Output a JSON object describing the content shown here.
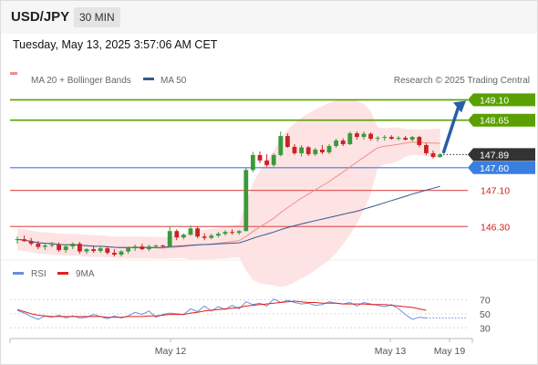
{
  "header": {
    "symbol": "USD/JPY",
    "timeframe": "30 MIN"
  },
  "datetime": "Tuesday, May 13, 2025 3:57:06 AM CET",
  "legend": {
    "ma20": {
      "label": "MA 20 + Bollinger Bands",
      "color": "#f08c8c"
    },
    "ma50": {
      "label": "MA 50",
      "color": "#35598f"
    },
    "credit": "Research © 2025 Trading Central"
  },
  "rsi_legend": {
    "rsi": {
      "label": "RSI",
      "color": "#6a8fd8"
    },
    "ma": {
      "label": "9MA",
      "color": "#e02020"
    }
  },
  "colors": {
    "up": "#3a9a3a",
    "down": "#cc2222",
    "target": "#5aa000",
    "pivot": "#3a7fe0",
    "support": "#e06060",
    "arrow": "#2a5da8"
  },
  "chart_data": [
    {
      "type": "candlestick",
      "title": "USD/JPY 30 MIN",
      "x_ticks": [
        "May 12",
        "May 13",
        "May 19"
      ],
      "ylim": [
        145.6,
        149.35
      ],
      "candles": [
        {
          "o": 146.0,
          "h": 146.08,
          "l": 145.92,
          "c": 146.02
        },
        {
          "o": 146.02,
          "h": 146.1,
          "l": 145.96,
          "c": 145.98
        },
        {
          "o": 145.98,
          "h": 146.05,
          "l": 145.88,
          "c": 145.92
        },
        {
          "o": 145.92,
          "h": 145.98,
          "l": 145.8,
          "c": 145.85
        },
        {
          "o": 145.85,
          "h": 145.92,
          "l": 145.78,
          "c": 145.88
        },
        {
          "o": 145.88,
          "h": 145.96,
          "l": 145.84,
          "c": 145.9
        },
        {
          "o": 145.9,
          "h": 145.95,
          "l": 145.74,
          "c": 145.78
        },
        {
          "o": 145.78,
          "h": 145.9,
          "l": 145.72,
          "c": 145.86
        },
        {
          "o": 145.86,
          "h": 145.95,
          "l": 145.8,
          "c": 145.92
        },
        {
          "o": 145.92,
          "h": 145.96,
          "l": 145.7,
          "c": 145.75
        },
        {
          "o": 145.75,
          "h": 145.82,
          "l": 145.7,
          "c": 145.8
        },
        {
          "o": 145.8,
          "h": 145.88,
          "l": 145.72,
          "c": 145.76
        },
        {
          "o": 145.76,
          "h": 145.85,
          "l": 145.72,
          "c": 145.82
        },
        {
          "o": 145.82,
          "h": 145.86,
          "l": 145.68,
          "c": 145.72
        },
        {
          "o": 145.72,
          "h": 145.8,
          "l": 145.64,
          "c": 145.68
        },
        {
          "o": 145.68,
          "h": 145.78,
          "l": 145.64,
          "c": 145.75
        },
        {
          "o": 145.75,
          "h": 145.86,
          "l": 145.7,
          "c": 145.82
        },
        {
          "o": 145.82,
          "h": 145.9,
          "l": 145.76,
          "c": 145.86
        },
        {
          "o": 145.86,
          "h": 145.92,
          "l": 145.78,
          "c": 145.8
        },
        {
          "o": 145.8,
          "h": 145.9,
          "l": 145.76,
          "c": 145.86
        },
        {
          "o": 145.86,
          "h": 145.9,
          "l": 145.82,
          "c": 145.88
        },
        {
          "o": 145.88,
          "h": 145.9,
          "l": 145.84,
          "c": 145.86
        },
        {
          "o": 145.86,
          "h": 146.3,
          "l": 145.86,
          "c": 146.2
        },
        {
          "o": 146.2,
          "h": 146.24,
          "l": 146.0,
          "c": 146.06
        },
        {
          "o": 146.06,
          "h": 146.15,
          "l": 146.02,
          "c": 146.12
        },
        {
          "o": 146.12,
          "h": 146.32,
          "l": 146.1,
          "c": 146.26
        },
        {
          "o": 146.26,
          "h": 146.3,
          "l": 146.04,
          "c": 146.08
        },
        {
          "o": 146.08,
          "h": 146.15,
          "l": 146.0,
          "c": 146.05
        },
        {
          "o": 146.05,
          "h": 146.14,
          "l": 146.02,
          "c": 146.1
        },
        {
          "o": 146.1,
          "h": 146.18,
          "l": 146.06,
          "c": 146.14
        },
        {
          "o": 146.14,
          "h": 146.22,
          "l": 146.1,
          "c": 146.18
        },
        {
          "o": 146.18,
          "h": 146.24,
          "l": 146.12,
          "c": 146.16
        },
        {
          "o": 146.16,
          "h": 146.22,
          "l": 146.12,
          "c": 146.2
        },
        {
          "o": 146.2,
          "h": 147.6,
          "l": 146.2,
          "c": 147.55
        },
        {
          "o": 147.55,
          "h": 147.95,
          "l": 147.5,
          "c": 147.88
        },
        {
          "o": 147.88,
          "h": 147.96,
          "l": 147.7,
          "c": 147.76
        },
        {
          "o": 147.76,
          "h": 147.9,
          "l": 147.62,
          "c": 147.66
        },
        {
          "o": 147.66,
          "h": 147.92,
          "l": 147.62,
          "c": 147.88
        },
        {
          "o": 147.88,
          "h": 148.4,
          "l": 147.85,
          "c": 148.3
        },
        {
          "o": 148.3,
          "h": 148.36,
          "l": 148.04,
          "c": 148.06
        },
        {
          "o": 148.06,
          "h": 148.12,
          "l": 147.88,
          "c": 147.92
        },
        {
          "o": 147.92,
          "h": 148.1,
          "l": 147.85,
          "c": 148.05
        },
        {
          "o": 148.05,
          "h": 148.08,
          "l": 147.86,
          "c": 147.9
        },
        {
          "o": 147.9,
          "h": 148.04,
          "l": 147.86,
          "c": 148.0
        },
        {
          "o": 148.0,
          "h": 148.1,
          "l": 147.9,
          "c": 147.94
        },
        {
          "o": 147.94,
          "h": 148.12,
          "l": 147.9,
          "c": 148.08
        },
        {
          "o": 148.08,
          "h": 148.24,
          "l": 148.04,
          "c": 148.2
        },
        {
          "o": 148.2,
          "h": 148.25,
          "l": 148.08,
          "c": 148.12
        },
        {
          "o": 148.12,
          "h": 148.4,
          "l": 148.1,
          "c": 148.36
        },
        {
          "o": 148.36,
          "h": 148.4,
          "l": 148.22,
          "c": 148.28
        },
        {
          "o": 148.28,
          "h": 148.4,
          "l": 148.22,
          "c": 148.35
        },
        {
          "o": 148.35,
          "h": 148.38,
          "l": 148.2,
          "c": 148.24
        },
        {
          "o": 148.24,
          "h": 148.3,
          "l": 148.18,
          "c": 148.26
        },
        {
          "o": 148.26,
          "h": 148.32,
          "l": 148.2,
          "c": 148.28
        },
        {
          "o": 148.28,
          "h": 148.32,
          "l": 148.22,
          "c": 148.24
        },
        {
          "o": 148.24,
          "h": 148.3,
          "l": 148.2,
          "c": 148.26
        },
        {
          "o": 148.26,
          "h": 148.3,
          "l": 148.2,
          "c": 148.22
        },
        {
          "o": 148.22,
          "h": 148.3,
          "l": 148.18,
          "c": 148.28
        },
        {
          "o": 148.28,
          "h": 148.3,
          "l": 148.06,
          "c": 148.1
        },
        {
          "o": 148.1,
          "h": 148.14,
          "l": 147.88,
          "c": 147.92
        },
        {
          "o": 147.92,
          "h": 147.98,
          "l": 147.8,
          "c": 147.84
        },
        {
          "o": 147.84,
          "h": 147.92,
          "l": 147.82,
          "c": 147.89
        }
      ],
      "price_labels": [
        {
          "value": 149.1,
          "label": "149.10",
          "kind": "target"
        },
        {
          "value": 148.65,
          "label": "148.65",
          "kind": "target"
        },
        {
          "value": 147.89,
          "label": "147.89",
          "kind": "last"
        },
        {
          "value": 147.6,
          "label": "147.60",
          "kind": "pivot"
        },
        {
          "value": 147.1,
          "label": "147.10",
          "kind": "support"
        },
        {
          "value": 146.3,
          "label": "146.30",
          "kind": "support"
        }
      ],
      "indicators": [
        "MA 20 + Bollinger Bands",
        "MA 50"
      ]
    },
    {
      "type": "line",
      "title": "RSI",
      "yticks": [
        70,
        50,
        30
      ],
      "ylim": [
        20,
        90
      ],
      "series": [
        {
          "name": "RSI",
          "values": [
            55,
            51,
            46,
            42,
            47,
            45,
            48,
            44,
            47,
            44,
            45,
            49,
            46,
            43,
            47,
            44,
            47,
            52,
            49,
            54,
            45,
            49,
            51,
            50,
            49,
            57,
            53,
            61,
            54,
            60,
            56,
            62,
            57,
            67,
            63,
            65,
            61,
            71,
            66,
            69,
            66,
            64,
            65,
            62,
            63,
            67,
            65,
            64,
            66,
            61,
            66,
            64,
            62,
            60,
            63,
            57,
            49,
            42,
            45,
            44
          ]
        },
        {
          "name": "9MA",
          "values": [
            56,
            53,
            50,
            48,
            47,
            46,
            46,
            46,
            46,
            46,
            46,
            46,
            46,
            45,
            45,
            45,
            46,
            46,
            46,
            47,
            47,
            48,
            49,
            49,
            49,
            51,
            52,
            54,
            55,
            56,
            57,
            58,
            59,
            61,
            62,
            63,
            64,
            65,
            66,
            67,
            68,
            67,
            66,
            66,
            65,
            65,
            65,
            64,
            64,
            64,
            64,
            63,
            63,
            63,
            62,
            61,
            60,
            59,
            57,
            55
          ]
        }
      ]
    }
  ]
}
